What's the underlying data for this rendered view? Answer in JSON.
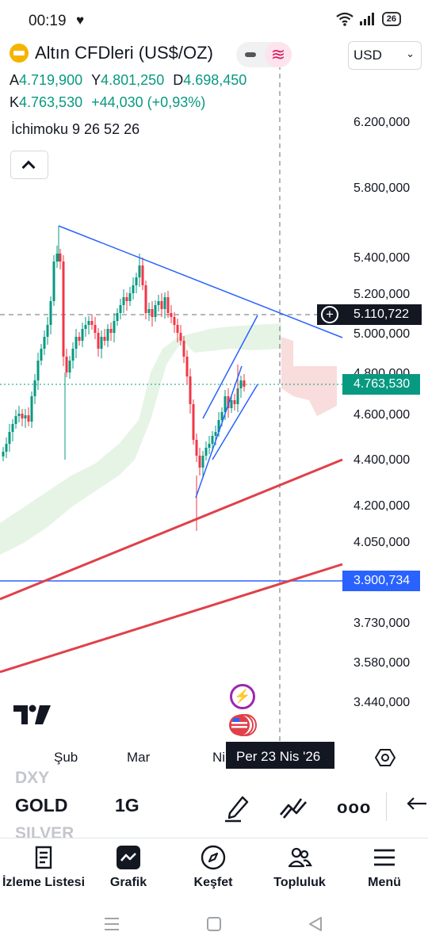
{
  "status_bar": {
    "time": "00:19",
    "battery": "26"
  },
  "header": {
    "symbol_title": "Altın CFDleri (US$/OZ)",
    "currency": "USD"
  },
  "ohlc": {
    "open_label": "A",
    "open": "4.719,900",
    "high_label": "Y",
    "high": "4.801,250",
    "low_label": "D",
    "low": "4.698,450",
    "close_label": "K",
    "close": "4.763,530",
    "change": "+44,030 (+0,93%)"
  },
  "indicator": {
    "label": "İchimoku 9 26 52 26"
  },
  "price_axis": {
    "ticks": [
      "6.200,000",
      "5.800,000",
      "5.400,000",
      "5.200,000",
      "5.000,000",
      "4.800,000",
      "4.600,000",
      "4.400,000",
      "4.200,000",
      "4.050,000",
      "3.730,000",
      "3.580,000",
      "3.440,000"
    ],
    "crosshair_price": "5.110,722",
    "last_price": "4.763,530",
    "horizontal_line_price": "3.900,734"
  },
  "time_axis": {
    "ticks": [
      "Şub",
      "Mar",
      "Ni"
    ],
    "crosshair_date": "Per 23 Nis '26"
  },
  "colors": {
    "up": "#089981",
    "down": "#f23645",
    "trendline": "#2962ff",
    "support": "#e0404a",
    "cloud_green": "#a5d6a7",
    "cloud_red": "#ef9a9a"
  },
  "symbol_switcher": {
    "previous": "DXY",
    "current": "GOLD",
    "next": "SILVER",
    "interval": "1G"
  },
  "bottom_nav": {
    "items": [
      {
        "label": "İzleme Listesi",
        "icon": "watchlist-icon"
      },
      {
        "label": "Grafik",
        "icon": "chart-icon"
      },
      {
        "label": "Keşfet",
        "icon": "compass-icon"
      },
      {
        "label": "Topluluk",
        "icon": "community-icon"
      },
      {
        "label": "Menü",
        "icon": "menu-icon"
      }
    ]
  }
}
